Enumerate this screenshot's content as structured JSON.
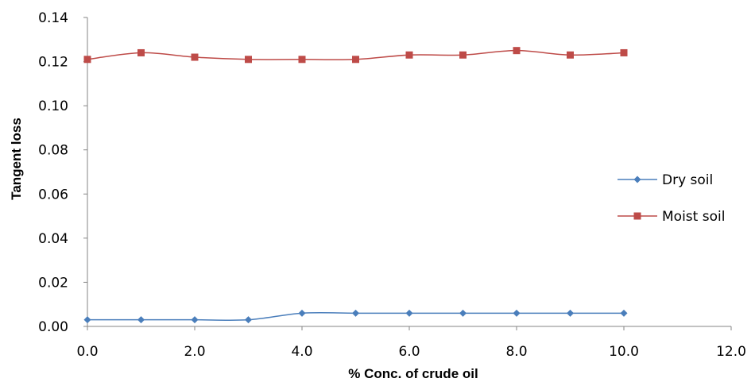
{
  "chart_data": {
    "type": "line",
    "title": "",
    "xlabel": "% Conc. of crude oil",
    "ylabel": "Tangent loss",
    "xlim": [
      0,
      12
    ],
    "ylim": [
      0,
      0.14
    ],
    "x_ticks": [
      "0.0",
      "2.0",
      "4.0",
      "6.0",
      "8.0",
      "10.0",
      "12.0"
    ],
    "y_ticks": [
      "0.00",
      "0.02",
      "0.04",
      "0.06",
      "0.08",
      "0.10",
      "0.12",
      "0.14"
    ],
    "x": [
      0,
      1,
      2,
      3,
      4,
      5,
      6,
      7,
      8,
      9,
      10
    ],
    "series": [
      {
        "name": "Dry soil",
        "color": "#4a7ebb",
        "marker": "diamond",
        "values": [
          0.003,
          0.003,
          0.003,
          0.003,
          0.006,
          0.006,
          0.006,
          0.006,
          0.006,
          0.006,
          0.006
        ]
      },
      {
        "name": "Moist soil",
        "color": "#be4b48",
        "marker": "square",
        "values": [
          0.121,
          0.124,
          0.122,
          0.121,
          0.121,
          0.121,
          0.123,
          0.123,
          0.125,
          0.123,
          0.124
        ]
      }
    ],
    "grid": false,
    "legend_position": "right"
  }
}
